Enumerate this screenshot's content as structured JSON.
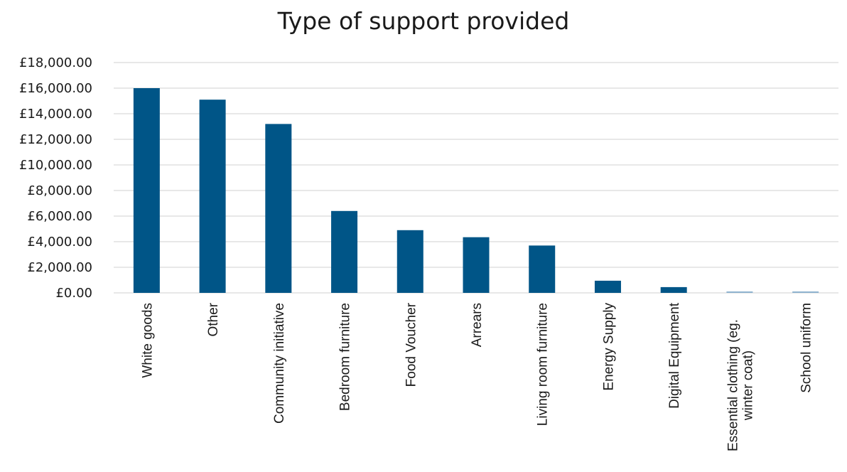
{
  "chart_data": {
    "type": "bar",
    "title": "Type of support provided",
    "xlabel": "",
    "ylabel": "",
    "ylim": [
      0,
      18000
    ],
    "y_tick_values": [
      0,
      2000,
      4000,
      6000,
      8000,
      10000,
      12000,
      14000,
      16000,
      18000
    ],
    "y_tick_labels": [
      "£0.00",
      "£2,000.00",
      "£4,000.00",
      "£6,000.00",
      "£8,000.00",
      "£10,000.00",
      "£12,000.00",
      "£14,000.00",
      "£16,000.00",
      "£18,000.00"
    ],
    "categories": [
      [
        "White goods"
      ],
      [
        "Other"
      ],
      [
        "Community initiative"
      ],
      [
        "Bedroom furniture"
      ],
      [
        "Food Voucher"
      ],
      [
        "Arrears"
      ],
      [
        "Living room furniture"
      ],
      [
        "Energy Supply"
      ],
      [
        "Digital Equipment"
      ],
      [
        "Essential clothing (eg.",
        "winter coat)"
      ],
      [
        "School uniform"
      ]
    ],
    "values": [
      16000,
      15100,
      13200,
      6400,
      4900,
      4350,
      3700,
      950,
      450,
      100,
      100
    ],
    "grid": true,
    "legend": "none",
    "colors": {
      "bar": "#005587",
      "bar_small": "#8fb3cf",
      "grid": "#d9d9d9",
      "text": "#1a1a1a"
    }
  }
}
